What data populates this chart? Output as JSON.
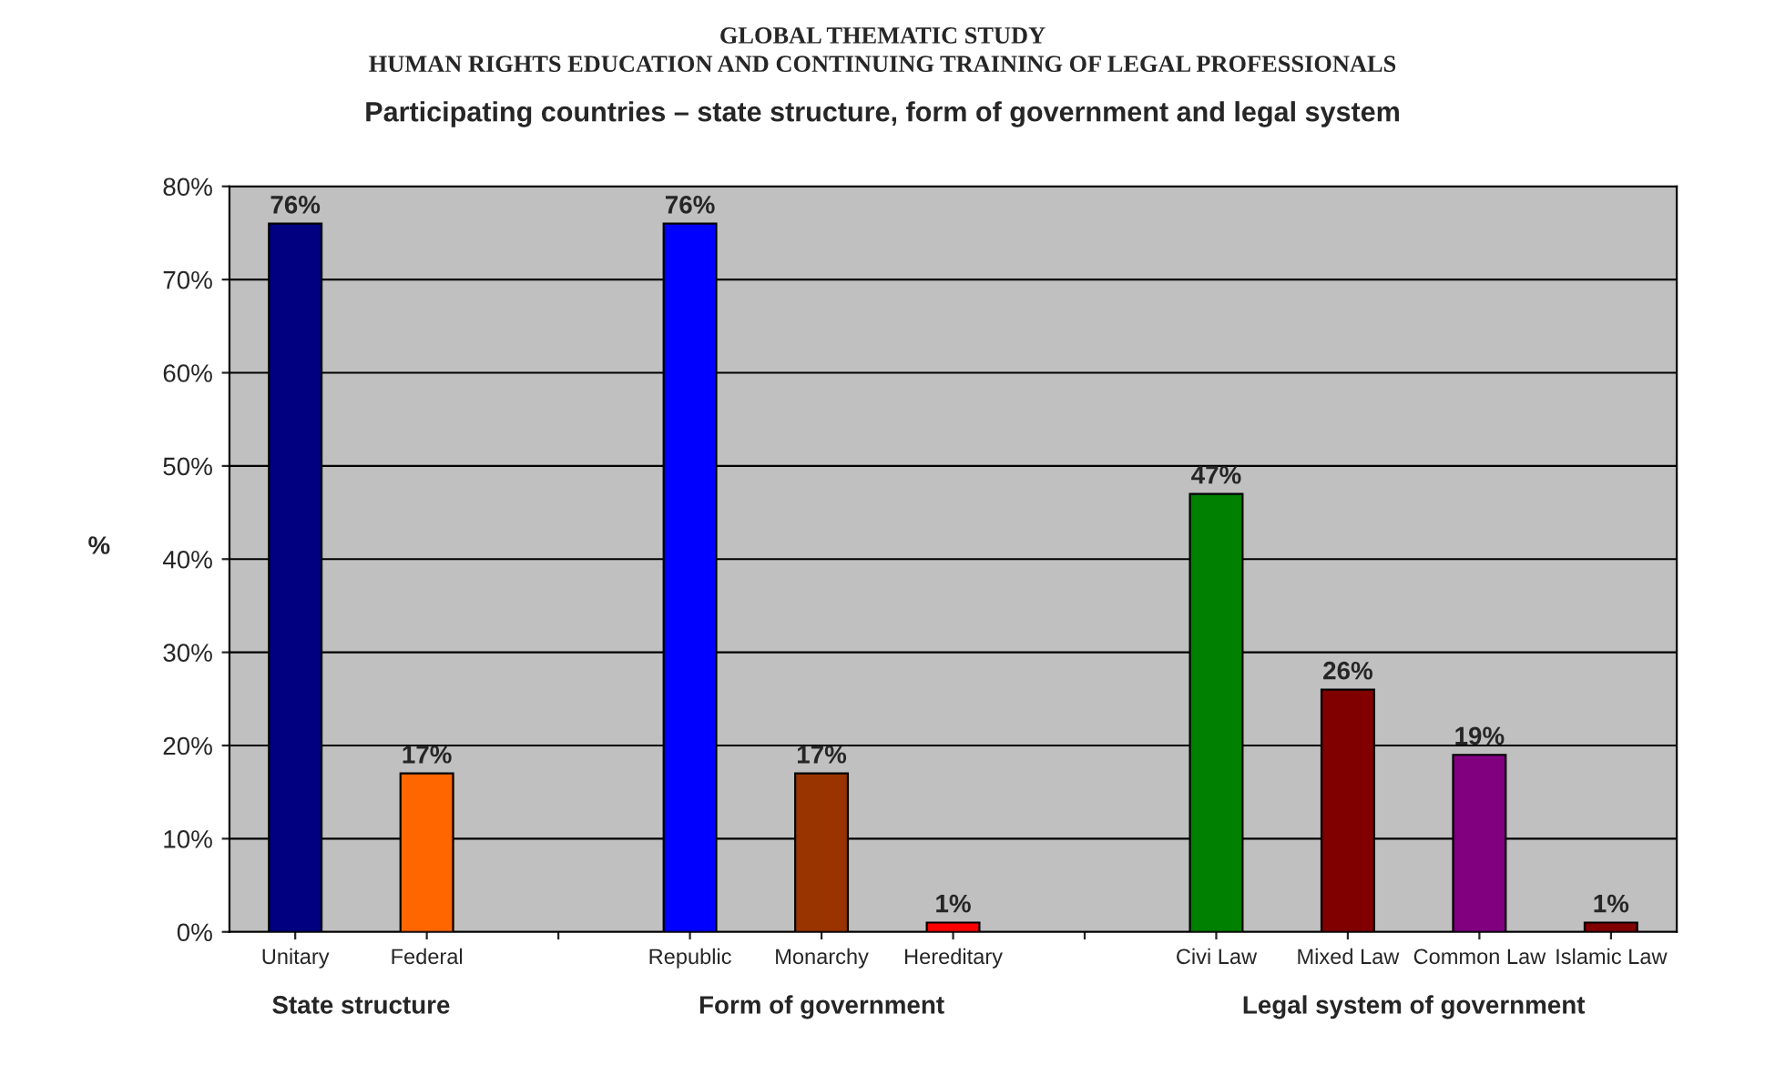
{
  "chart_data": {
    "type": "bar",
    "title": "GLOBAL THEMATIC STUDY\nHUMAN RIGHTS EDUCATION AND CONTINUING TRAINING OF LEGAL PROFESSIONALS",
    "subtitle": "Participating countries – state structure, form of government and legal system",
    "ylabel": "%",
    "categories": [
      "Unitary",
      "Federal",
      null,
      "Republic",
      "Monarchy",
      "Hereditary",
      null,
      "Civi Law",
      "Mixed Law",
      "Common Law",
      "Islamic Law"
    ],
    "values": [
      76,
      17,
      null,
      76,
      17,
      1,
      null,
      47,
      26,
      19,
      1
    ],
    "value_labels": [
      "76%",
      "17%",
      null,
      "76%",
      "17%",
      "1%",
      null,
      "47%",
      "26%",
      "19%",
      "1%"
    ],
    "colors": [
      "#000080",
      "#ff6600",
      "#c0c0c0",
      "#0000ff",
      "#993300",
      "#ff0000",
      "#c0c0c0",
      "#008000",
      "#800000",
      "#800080",
      "#800000"
    ],
    "ylim": [
      0,
      80
    ],
    "yticks": [
      {
        "value": 0,
        "label": "0%"
      },
      {
        "value": 10,
        "label": "10%"
      },
      {
        "value": 20,
        "label": "20%"
      },
      {
        "value": 30,
        "label": "30%"
      },
      {
        "value": 40,
        "label": "40%"
      },
      {
        "value": 50,
        "label": "50%"
      },
      {
        "value": 60,
        "label": "60%"
      },
      {
        "value": 70,
        "label": "70%"
      },
      {
        "value": 80,
        "label": "80%"
      }
    ],
    "grid": "y",
    "annotations": [
      "State structure",
      "Form of government",
      "Legal system of government"
    ]
  }
}
